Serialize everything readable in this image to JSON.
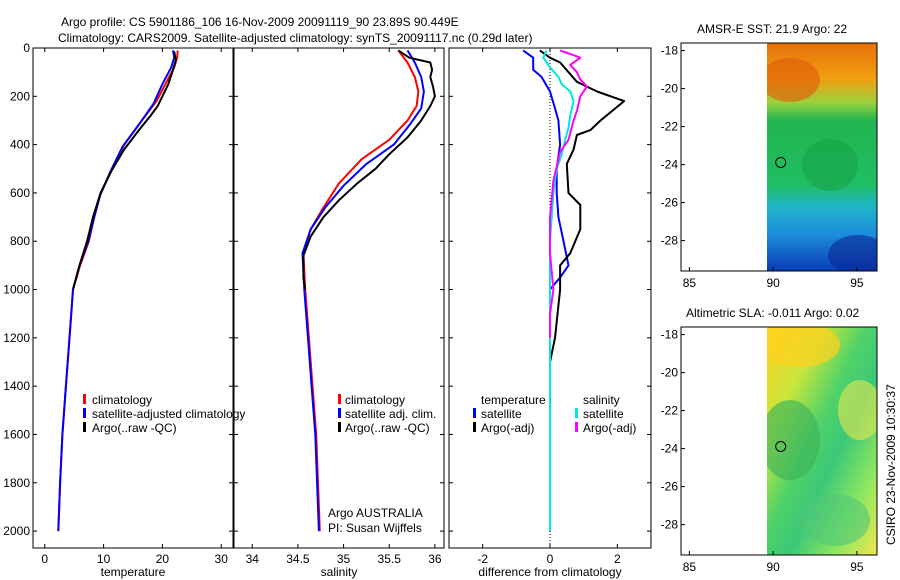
{
  "header": {
    "title_line1": "Argo profile: CS 5901186_106 16-Nov-2009 20091119_90 23.89S 90.449E",
    "title_line2": "Climatology: CARS2009. Satellite-adjusted climatology: synTS_20091117.nc (0.29d later)"
  },
  "colors": {
    "climatology": "#ff0000",
    "satellite": "#0000ff",
    "argo": "#000000",
    "sal_satellite": "#00e5e5",
    "sal_argo": "#ff00ff"
  },
  "chart_data": [
    {
      "id": "temperature",
      "type": "line",
      "xlabel": "temperature",
      "xlim": [
        -2,
        32
      ],
      "ylim": [
        2070,
        0
      ],
      "xticks": [
        0,
        10,
        20,
        30
      ],
      "yticks": [
        0,
        200,
        400,
        600,
        800,
        1000,
        1200,
        1400,
        1600,
        1800,
        2000
      ],
      "legend": [
        "climatology",
        "satellite-adjusted climatology",
        "Argo(..raw -QC)"
      ],
      "series": [
        {
          "name": "climatology",
          "color": "#ff0000",
          "points": [
            [
              22.6,
              10
            ],
            [
              22.5,
              40
            ],
            [
              22.0,
              80
            ],
            [
              20.5,
              150
            ],
            [
              19.0,
              220
            ],
            [
              16.5,
              300
            ],
            [
              13.5,
              400
            ],
            [
              11.5,
              500
            ],
            [
              9.5,
              600
            ],
            [
              8.4,
              700
            ],
            [
              7.5,
              800
            ],
            [
              6.0,
              900
            ],
            [
              4.8,
              1000
            ],
            [
              4.2,
              1200
            ],
            [
              3.6,
              1400
            ],
            [
              3.0,
              1600
            ],
            [
              2.6,
              1800
            ],
            [
              2.3,
              2000
            ]
          ]
        },
        {
          "name": "satellite-adjusted climatology",
          "color": "#0000ff",
          "points": [
            [
              21.8,
              10
            ],
            [
              22.0,
              40
            ],
            [
              21.5,
              80
            ],
            [
              20.0,
              150
            ],
            [
              18.5,
              230
            ],
            [
              16.2,
              310
            ],
            [
              13.2,
              410
            ],
            [
              11.2,
              510
            ],
            [
              9.4,
              610
            ],
            [
              8.3,
              710
            ],
            [
              7.4,
              800
            ],
            [
              5.9,
              900
            ],
            [
              4.8,
              1000
            ],
            [
              4.2,
              1200
            ],
            [
              3.6,
              1400
            ],
            [
              3.0,
              1600
            ],
            [
              2.6,
              1800
            ],
            [
              2.3,
              2000
            ]
          ]
        },
        {
          "name": "Argo(..raw -QC)",
          "color": "#000000",
          "points": [
            [
              22.0,
              15
            ],
            [
              22.3,
              50
            ],
            [
              21.8,
              90
            ],
            [
              21.0,
              150
            ],
            [
              20.0,
              200
            ],
            [
              19.2,
              240
            ],
            [
              18.0,
              280
            ],
            [
              16.0,
              340
            ],
            [
              13.5,
              420
            ],
            [
              11.3,
              510
            ],
            [
              9.5,
              600
            ],
            [
              8.2,
              700
            ],
            [
              7.2,
              800
            ],
            [
              5.9,
              900
            ],
            [
              4.8,
              1000
            ]
          ]
        }
      ]
    },
    {
      "id": "salinity",
      "type": "line",
      "xlabel": "salinity",
      "xlim": [
        33.8,
        36.1
      ],
      "ylim": [
        2070,
        0
      ],
      "xticks": [
        34,
        34.5,
        35,
        35.5,
        36
      ],
      "legend": [
        "climatology",
        "satellite adj. clim.",
        "Argo(..raw -QC)"
      ],
      "annotation": [
        "Argo AUSTRALIA",
        "PI: Susan Wijffels"
      ],
      "series": [
        {
          "name": "climatology",
          "color": "#ff0000",
          "points": [
            [
              35.6,
              10
            ],
            [
              35.7,
              60
            ],
            [
              35.78,
              120
            ],
            [
              35.82,
              180
            ],
            [
              35.8,
              240
            ],
            [
              35.7,
              300
            ],
            [
              35.5,
              380
            ],
            [
              35.2,
              460
            ],
            [
              34.95,
              560
            ],
            [
              34.78,
              660
            ],
            [
              34.64,
              750
            ],
            [
              34.56,
              850
            ],
            [
              34.58,
              1000
            ],
            [
              34.62,
              1200
            ],
            [
              34.66,
              1400
            ],
            [
              34.7,
              1600
            ],
            [
              34.72,
              1800
            ],
            [
              34.74,
              2000
            ]
          ]
        },
        {
          "name": "satellite adj. clim.",
          "color": "#0000ff",
          "points": [
            [
              35.7,
              10
            ],
            [
              35.78,
              60
            ],
            [
              35.85,
              120
            ],
            [
              35.88,
              180
            ],
            [
              35.85,
              250
            ],
            [
              35.72,
              320
            ],
            [
              35.55,
              400
            ],
            [
              35.25,
              480
            ],
            [
              35.0,
              570
            ],
            [
              34.8,
              660
            ],
            [
              34.64,
              750
            ],
            [
              34.55,
              850
            ],
            [
              34.57,
              1000
            ],
            [
              34.61,
              1200
            ],
            [
              34.65,
              1400
            ],
            [
              34.69,
              1600
            ],
            [
              34.71,
              1800
            ],
            [
              34.73,
              2000
            ]
          ]
        },
        {
          "name": "Argo(..raw -QC)",
          "color": "#000000",
          "points": [
            [
              35.6,
              10
            ],
            [
              35.72,
              40
            ],
            [
              35.95,
              60
            ],
            [
              35.97,
              90
            ],
            [
              35.95,
              120
            ],
            [
              35.98,
              160
            ],
            [
              36.0,
              200
            ],
            [
              35.95,
              240
            ],
            [
              35.85,
              300
            ],
            [
              35.7,
              370
            ],
            [
              35.5,
              440
            ],
            [
              35.35,
              500
            ],
            [
              35.15,
              560
            ],
            [
              34.95,
              630
            ],
            [
              34.78,
              700
            ],
            [
              34.64,
              780
            ],
            [
              34.56,
              860
            ],
            [
              34.56,
              950
            ],
            [
              34.58,
              1000
            ]
          ]
        }
      ]
    },
    {
      "id": "difference",
      "type": "line",
      "xlabel": "difference from climatology",
      "xlim": [
        -3,
        3
      ],
      "ylim": [
        2070,
        0
      ],
      "xticks": [
        -2,
        0,
        2
      ],
      "legend_headers": [
        "temperature",
        "salinity"
      ],
      "legend": [
        "satellite",
        "Argo(-adj)",
        "satellite",
        "Argo(-adj)"
      ],
      "series": [
        {
          "name": "temperature satellite",
          "color": "#0000ff",
          "points": [
            [
              -0.8,
              10
            ],
            [
              -0.5,
              40
            ],
            [
              -0.5,
              70
            ],
            [
              -0.5,
              90
            ],
            [
              -0.25,
              120
            ],
            [
              0.0,
              180
            ],
            [
              0.15,
              250
            ],
            [
              0.25,
              300
            ],
            [
              0.3,
              400
            ],
            [
              0.2,
              500
            ],
            [
              0.2,
              600
            ],
            [
              0.25,
              700
            ],
            [
              0.4,
              800
            ],
            [
              0.55,
              900
            ],
            [
              0.3,
              950
            ],
            [
              0.0,
              1000
            ],
            [
              0.0,
              1200
            ],
            [
              0.0,
              1500
            ],
            [
              0.0,
              2000
            ]
          ]
        },
        {
          "name": "temperature Argo(-adj)",
          "color": "#000000",
          "points": [
            [
              -0.3,
              10
            ],
            [
              0.0,
              40
            ],
            [
              0.3,
              60
            ],
            [
              0.8,
              140
            ],
            [
              1.4,
              180
            ],
            [
              2.2,
              220
            ],
            [
              1.5,
              300
            ],
            [
              1.2,
              340
            ],
            [
              0.8,
              360
            ],
            [
              0.7,
              420
            ],
            [
              0.5,
              480
            ],
            [
              0.55,
              600
            ],
            [
              0.9,
              650
            ],
            [
              0.9,
              750
            ],
            [
              0.6,
              850
            ],
            [
              0.3,
              900
            ],
            [
              0.3,
              1000
            ],
            [
              0.15,
              1200
            ],
            [
              0.0,
              1300
            ],
            [
              0.0,
              2000
            ]
          ]
        },
        {
          "name": "salinity satellite",
          "color": "#00e5e5",
          "points": [
            [
              -0.1,
              10
            ],
            [
              -0.2,
              40
            ],
            [
              0.0,
              80
            ],
            [
              0.25,
              120
            ],
            [
              0.35,
              150
            ],
            [
              0.6,
              180
            ],
            [
              0.7,
              220
            ],
            [
              0.6,
              280
            ],
            [
              0.55,
              330
            ],
            [
              0.45,
              380
            ],
            [
              0.35,
              440
            ],
            [
              0.2,
              500
            ],
            [
              0.1,
              600
            ],
            [
              0.05,
              700
            ],
            [
              0.0,
              800
            ],
            [
              0.0,
              1000
            ],
            [
              0.0,
              1200
            ],
            [
              0.0,
              1500
            ],
            [
              0.0,
              2000
            ]
          ]
        },
        {
          "name": "salinity Argo(-adj)",
          "color": "#ff00ff",
          "points": [
            [
              0.3,
              10
            ],
            [
              0.7,
              30
            ],
            [
              0.9,
              40
            ],
            [
              0.6,
              70
            ],
            [
              0.8,
              100
            ],
            [
              0.9,
              130
            ],
            [
              1.1,
              160
            ],
            [
              0.9,
              200
            ],
            [
              0.8,
              260
            ],
            [
              0.7,
              300
            ],
            [
              0.55,
              380
            ],
            [
              0.3,
              430
            ],
            [
              0.1,
              550
            ],
            [
              0.0,
              700
            ],
            [
              0.0,
              850
            ],
            [
              0.1,
              1000
            ],
            [
              0.0,
              1100
            ],
            [
              0.0,
              1200
            ]
          ]
        }
      ]
    }
  ],
  "maps": [
    {
      "id": "sst-map",
      "title": "AMSR-E SST: 21.9 Argo: 22",
      "xticks": [
        85,
        90,
        95
      ],
      "yticks": [
        -18,
        -20,
        -22,
        -24,
        -26,
        -28
      ],
      "marker": [
        90.45,
        -23.89
      ]
    },
    {
      "id": "sla-map",
      "title": "Altimetric SLA: -0.011 Argo: 0.02",
      "xticks": [
        85,
        90,
        95
      ],
      "yticks": [
        -18,
        -20,
        -22,
        -24,
        -26,
        -28
      ],
      "marker": [
        90.45,
        -23.89
      ]
    }
  ],
  "footer": {
    "stamp": "CSIRO 23-Nov-2009 10:30:37"
  }
}
